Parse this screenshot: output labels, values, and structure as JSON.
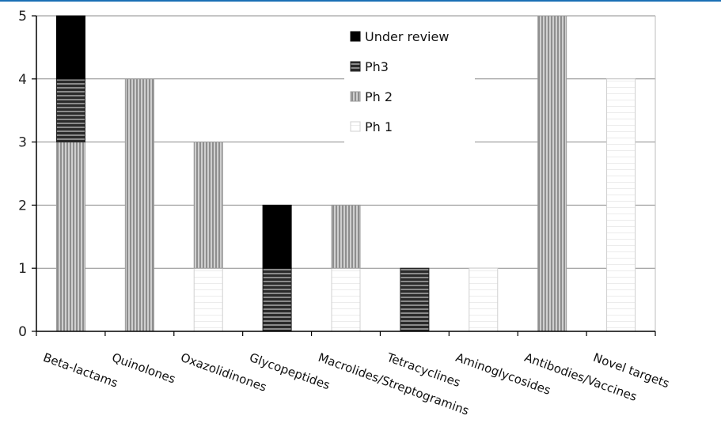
{
  "chart_data": {
    "type": "bar",
    "stacked": true,
    "categories": [
      "Beta-lactams",
      "Quinolones",
      "Oxazolidinones",
      "Glycopeptides",
      "Macrolides/Streptogramins",
      "Tetracyclines",
      "Aminoglycosides",
      "Antibodies/Vaccines",
      "Novel targets"
    ],
    "series": [
      {
        "name": "Ph 1",
        "values": [
          0,
          0,
          1,
          0,
          1,
          0,
          1,
          0,
          4
        ]
      },
      {
        "name": "Ph 2",
        "values": [
          3,
          4,
          2,
          0,
          1,
          0,
          0,
          5,
          0
        ]
      },
      {
        "name": "Ph3",
        "values": [
          1,
          0,
          0,
          1,
          0,
          1,
          0,
          0,
          0
        ]
      },
      {
        "name": "Under review",
        "values": [
          1,
          0,
          0,
          1,
          0,
          0,
          0,
          0,
          0
        ]
      }
    ],
    "legend_order": [
      "Under review",
      "Ph3",
      "Ph 2",
      "Ph 1"
    ],
    "ylim": [
      0,
      5
    ],
    "yticks": [
      0,
      1,
      2,
      3,
      4,
      5
    ],
    "grid": true,
    "legend_position": "top-center",
    "colors": {
      "Under review": "#000000",
      "Ph3": "#555555",
      "Ph 2": "#a8a8a8",
      "Ph 1": "#ffffff"
    }
  }
}
